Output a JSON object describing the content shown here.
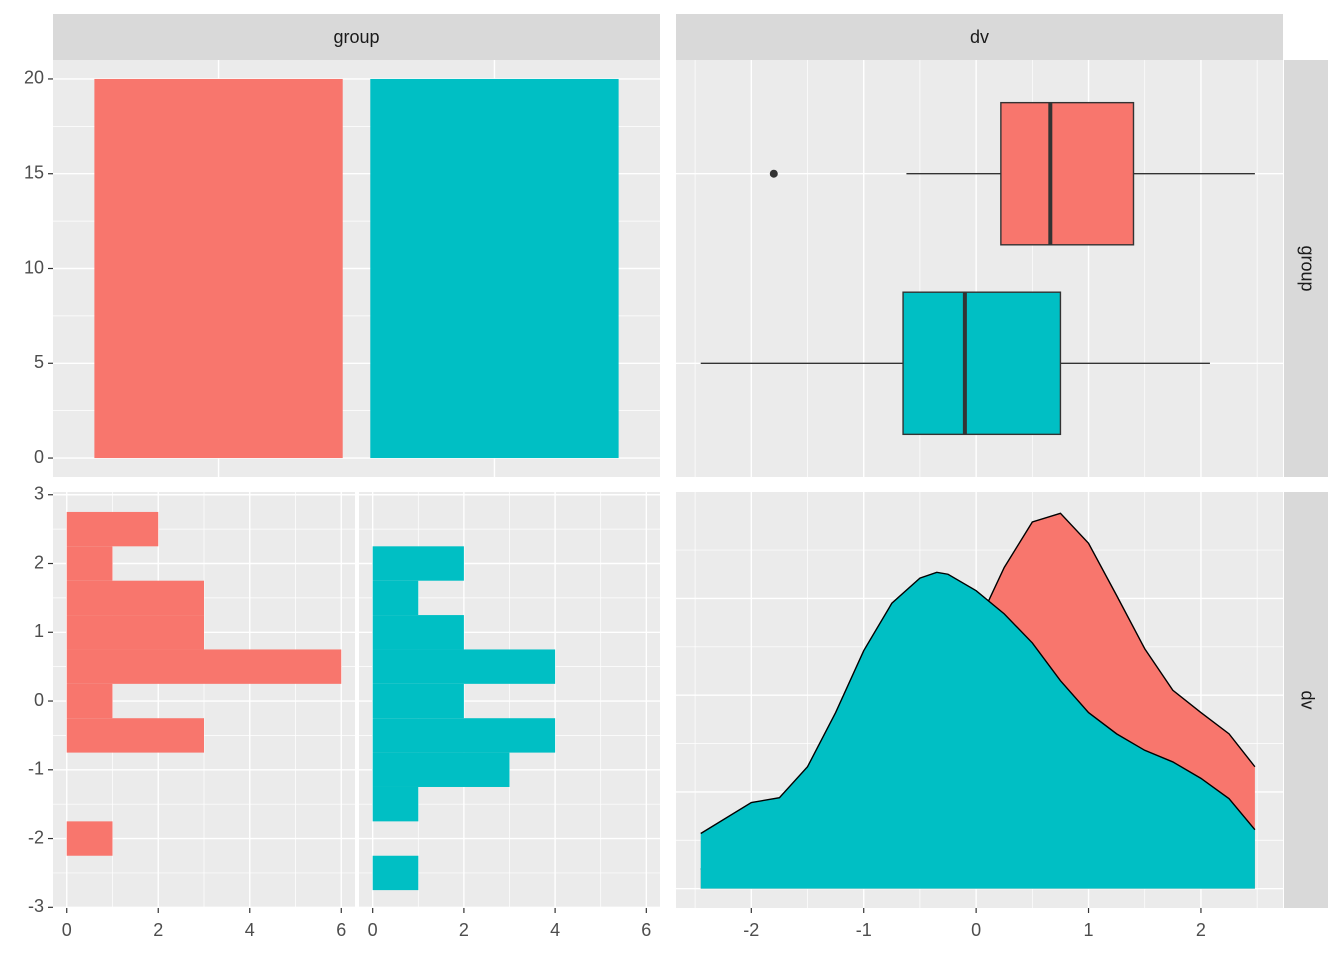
{
  "chart_data": [
    {
      "type": "bar",
      "facet_top": "group",
      "categories": [
        null,
        null
      ],
      "values": [
        20,
        20
      ],
      "colors": [
        "#f8766d",
        "#00bfc4"
      ],
      "ylim": [
        -1,
        21
      ],
      "yticks": [
        0,
        5,
        10,
        15,
        20
      ],
      "grid": true
    },
    {
      "type": "boxplot",
      "facet_top": "dv",
      "facet_right": "group",
      "orientation": "horizontal",
      "xlim": [
        -2.67,
        2.73
      ],
      "xticks": [
        -2,
        -1,
        0,
        1,
        2
      ],
      "grid": true,
      "boxes": [
        {
          "color": "#f8766d",
          "whisker_low": -0.62,
          "q1": 0.22,
          "median": 0.66,
          "q3": 1.4,
          "whisker_high": 2.48,
          "outliers": [
            -1.8
          ]
        },
        {
          "color": "#00bfc4",
          "whisker_low": -2.45,
          "q1": -0.65,
          "median": -0.1,
          "q3": 0.75,
          "whisker_high": 2.08,
          "outliers": []
        }
      ]
    },
    {
      "type": "histogram",
      "orientation": "horizontal",
      "bins": [
        -2.75,
        -2.25,
        -1.75,
        -1.25,
        -0.75,
        -0.25,
        0.25,
        0.75,
        1.25,
        1.75,
        2.25,
        2.75
      ],
      "series": [
        {
          "color": "#f8766d",
          "values": [
            0,
            1,
            0,
            0,
            3,
            1,
            6,
            3,
            3,
            1,
            2
          ]
        },
        {
          "color": "#00bfc4",
          "values": [
            1,
            0,
            1,
            3,
            4,
            2,
            4,
            2,
            1,
            2,
            0
          ]
        }
      ],
      "xlim": [
        -0.3,
        6.3
      ],
      "xticks": [
        0,
        2,
        4,
        6
      ],
      "ylim": [
        -3.01,
        3.04
      ],
      "yticks": [
        -3,
        -2,
        -1,
        0,
        1,
        2,
        3
      ],
      "grid": true
    },
    {
      "type": "area",
      "facet_right": "dv",
      "x": [
        -2.45,
        -2.0,
        -1.75,
        -1.5,
        -1.25,
        -1.0,
        -0.75,
        -0.5,
        -0.35,
        -0.25,
        0,
        0.25,
        0.5,
        0.75,
        1.0,
        1.25,
        1.5,
        1.75,
        2.0,
        2.25,
        2.48
      ],
      "series": [
        {
          "color": "#f8766d",
          "values": [
            0.02,
            0.04,
            0.05,
            0.06,
            0.07,
            0.08,
            0.1,
            0.14,
            0.17,
            0.2,
            0.27,
            0.332,
            0.379,
            0.388,
            0.357,
            0.303,
            0.248,
            0.205,
            0.182,
            0.16,
            0.126
          ]
        },
        {
          "color": "#00bfc4",
          "values": [
            0.057,
            0.089,
            0.094,
            0.126,
            0.182,
            0.246,
            0.295,
            0.321,
            0.327,
            0.325,
            0.308,
            0.284,
            0.254,
            0.215,
            0.182,
            0.16,
            0.143,
            0.131,
            0.114,
            0.093,
            0.061
          ]
        }
      ],
      "xlim": [
        -2.67,
        2.73
      ],
      "xticks": [
        -2,
        -1,
        0,
        1,
        2
      ],
      "ylim": [
        -0.02,
        0.41
      ],
      "yticks": [
        0,
        0.1,
        0.2,
        0.3
      ],
      "grid": true
    }
  ]
}
